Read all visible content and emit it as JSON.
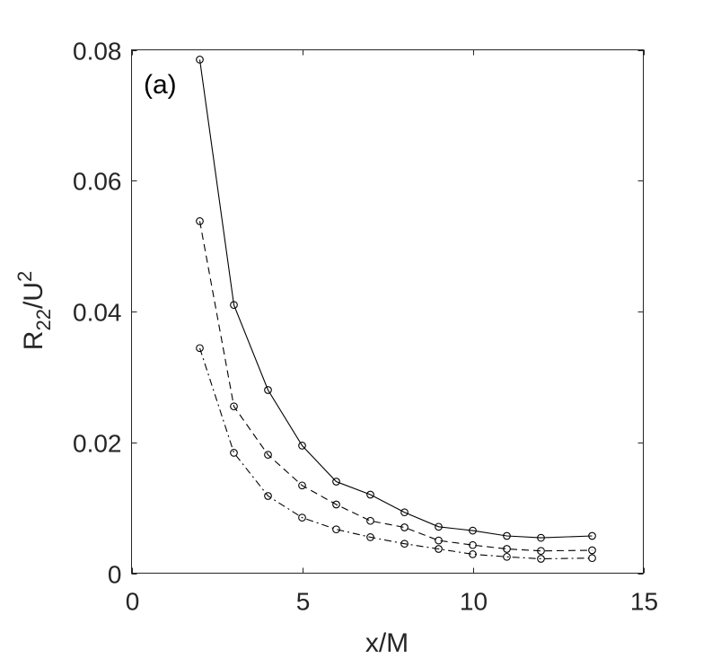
{
  "chart_data": {
    "type": "line",
    "annotation": "(a)",
    "xlabel": "x/M",
    "ylabel": {
      "base": "R",
      "sub": "22",
      "mid": "/U",
      "sup": "2"
    },
    "xlim": [
      0,
      15
    ],
    "ylim": [
      0,
      0.08
    ],
    "xticks": [
      0,
      5,
      10,
      15
    ],
    "xtick_labels": [
      "0",
      "5",
      "10",
      "15"
    ],
    "yticks": [
      0,
      0.02,
      0.04,
      0.06,
      0.08
    ],
    "ytick_labels": [
      "0",
      "0.02",
      "0.04",
      "0.06",
      "0.08"
    ],
    "grid": false,
    "box": true,
    "x": [
      2,
      3,
      4,
      5,
      6,
      7,
      8,
      9,
      10,
      11,
      12,
      13.5
    ],
    "series": [
      {
        "line_style": "solid",
        "marker": "circle",
        "color": "#000000",
        "values": [
          0.0785,
          0.041,
          0.028,
          0.0195,
          0.014,
          0.012,
          0.0093,
          0.0071,
          0.0065,
          0.0057,
          0.0054,
          0.0057
        ]
      },
      {
        "line_style": "dashed",
        "marker": "circle",
        "color": "#000000",
        "values": [
          0.0538,
          0.0255,
          0.0181,
          0.0134,
          0.0105,
          0.008,
          0.007,
          0.005,
          0.0043,
          0.0037,
          0.0034,
          0.0035
        ]
      },
      {
        "line_style": "dash-dot",
        "marker": "circle",
        "color": "#000000",
        "values": [
          0.0344,
          0.0184,
          0.0118,
          0.0085,
          0.0067,
          0.0055,
          0.0045,
          0.0037,
          0.0029,
          0.0025,
          0.0022,
          0.0023
        ]
      }
    ]
  }
}
